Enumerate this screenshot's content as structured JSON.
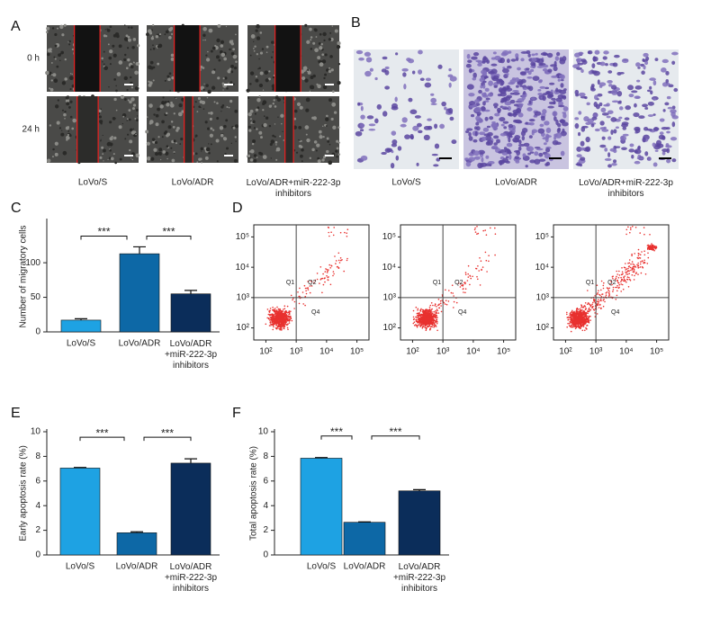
{
  "panel_A": {
    "label": "A",
    "rows": [
      "0 h",
      "24 h"
    ],
    "columns": [
      "LoVo/S",
      "LoVo/ADR",
      "LoVo/ADR+miR-222-3p\ninhibitors"
    ]
  },
  "panel_B": {
    "label": "B",
    "columns": [
      "LoVo/S",
      "LoVo/ADR",
      "LoVo/ADR+miR-222-3p\ninhibitors"
    ]
  },
  "panel_D": {
    "label": "D",
    "type": "flow-cytometry",
    "xscale": "log",
    "yscale": "log",
    "xlim": [
      40,
      250000
    ],
    "ylim": [
      40,
      250000
    ],
    "xticks": [
      {
        "value": 100,
        "label": "10²"
      },
      {
        "value": 1000,
        "label": "10³"
      },
      {
        "value": 10000,
        "label": "10⁴"
      },
      {
        "value": 100000,
        "label": "10⁵"
      }
    ],
    "yticks": [
      {
        "value": 100,
        "label": "10²"
      },
      {
        "value": 1000,
        "label": "10³"
      },
      {
        "value": 10000,
        "label": "10⁴"
      },
      {
        "value": 100000,
        "label": "10⁵"
      }
    ],
    "gate": 1000,
    "dot_color": "#e8312f",
    "plots": [
      {
        "quadrants": [
          "Q1",
          "Q2",
          "Q4"
        ]
      },
      {
        "quadrants": [
          "Q1",
          "Q2",
          "Q4"
        ]
      },
      {
        "quadrants": [
          "Q1",
          "Q2",
          "Q4"
        ]
      }
    ]
  },
  "chart_data": [
    {
      "label": "C",
      "type": "bar",
      "ylabel": "Number of migratory cells",
      "categories": [
        "LoVo/S",
        "LoVo/ADR",
        "LoVo/ADR\n+miR-222-3p\ninhibitors"
      ],
      "values": [
        17,
        113,
        55
      ],
      "errors": [
        2,
        10,
        5
      ],
      "colors": [
        "#1ea2e3",
        "#0d68a6",
        "#0b2d5a"
      ],
      "ylim": [
        0,
        160
      ],
      "yticks": [
        0,
        50,
        100
      ],
      "annotations": [
        "***",
        "***"
      ]
    },
    {
      "label": "E",
      "type": "bar",
      "ylabel": "Early apoptosis rate (%)",
      "categories": [
        "LoVo/S",
        "LoVo/ADR",
        "LoVo/ADR\n+miR-222-3p\ninhibitors"
      ],
      "values": [
        7.05,
        1.8,
        7.45
      ],
      "errors": [
        0.05,
        0.08,
        0.35
      ],
      "colors": [
        "#1ea2e3",
        "#0d68a6",
        "#0b2d5a"
      ],
      "ylim": [
        0,
        10
      ],
      "yticks": [
        0,
        2,
        4,
        6,
        8,
        10
      ],
      "annotations": [
        "***",
        "***"
      ]
    },
    {
      "label": "F",
      "type": "bar",
      "ylabel": "Total apoptosis rate (%)",
      "categories": [
        "LoVo/S",
        "LoVo/ADR",
        "LoVo/ADR\n+miR-222-3p\ninhibitors"
      ],
      "values": [
        7.85,
        2.65,
        5.2
      ],
      "errors": [
        0.05,
        0.03,
        0.1
      ],
      "colors": [
        "#1ea2e3",
        "#0d68a6",
        "#0b2d5a"
      ],
      "ylim": [
        0,
        10
      ],
      "yticks": [
        0,
        2,
        4,
        6,
        8,
        10
      ],
      "annotations": [
        "***",
        "***"
      ]
    }
  ]
}
